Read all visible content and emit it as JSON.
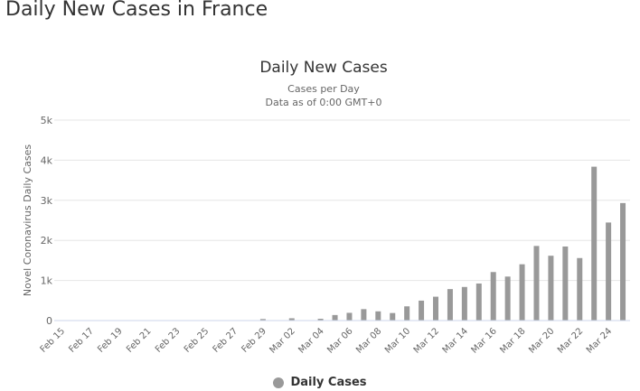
{
  "page": {
    "heading": "Daily New Cases in France"
  },
  "chart_data": {
    "type": "bar",
    "title": "Daily New Cases",
    "subtitle": "Cases per Day",
    "subtitle2": "Data as of 0:00 GMT+0",
    "xlabel": "",
    "ylabel": "Novel Coronavirus Daily Cases",
    "ylim": [
      0,
      5000
    ],
    "y_ticks": [
      0,
      1000,
      2000,
      3000,
      4000,
      5000
    ],
    "y_tick_labels": [
      "0",
      "1k",
      "2k",
      "3k",
      "4k",
      "5k"
    ],
    "grid": true,
    "legend_position": "bottom-center",
    "categories": [
      "Feb 15",
      "Feb 16",
      "Feb 17",
      "Feb 18",
      "Feb 19",
      "Feb 20",
      "Feb 21",
      "Feb 22",
      "Feb 23",
      "Feb 24",
      "Feb 25",
      "Feb 26",
      "Feb 27",
      "Feb 28",
      "Feb 29",
      "Mar 01",
      "Mar 02",
      "Mar 03",
      "Mar 04",
      "Mar 05",
      "Mar 06",
      "Mar 07",
      "Mar 08",
      "Mar 09",
      "Mar 10",
      "Mar 11",
      "Mar 12",
      "Mar 13",
      "Mar 14",
      "Mar 15",
      "Mar 16",
      "Mar 17",
      "Mar 18",
      "Mar 19",
      "Mar 20",
      "Mar 21",
      "Mar 22",
      "Mar 23",
      "Mar 24",
      "Mar 25"
    ],
    "x_tick_labels": [
      "Feb 15",
      "Feb 17",
      "Feb 19",
      "Feb 21",
      "Feb 23",
      "Feb 25",
      "Feb 27",
      "Feb 29",
      "Mar 02",
      "Mar 04",
      "Mar 06",
      "Mar 08",
      "Mar 10",
      "Mar 12",
      "Mar 14",
      "Mar 16",
      "Mar 18",
      "Mar 20",
      "Mar 22",
      "Mar 24"
    ],
    "series": [
      {
        "name": "Daily Cases",
        "color": "#999999",
        "values": [
          0,
          0,
          0,
          0,
          0,
          0,
          0,
          0,
          0,
          0,
          0,
          0,
          0,
          0,
          38,
          0,
          57,
          0,
          45,
          138,
          193,
          285,
          230,
          188,
          355,
          497,
          595,
          785,
          838,
          924,
          1210,
          1097,
          1404,
          1861,
          1617,
          1847,
          1559,
          3838,
          2446,
          2931
        ]
      }
    ]
  },
  "colors": {
    "bar": "#999999",
    "grid": "#e6e6e6",
    "axis": "#ccd6eb",
    "text": "#666666",
    "title": "#333333"
  }
}
